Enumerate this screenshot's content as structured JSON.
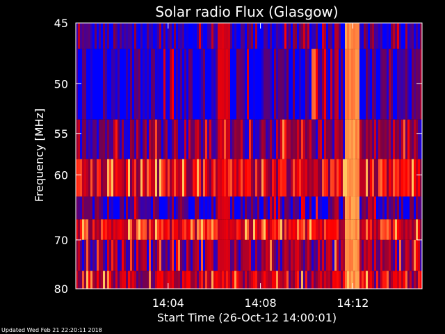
{
  "chart_data": {
    "type": "heatmap",
    "title": "Solar radio Flux (Glasgow)",
    "xlabel": "Start Time (26-Oct-12 14:00:01)",
    "ylabel_main": "Frequency ",
    "ylabel_unit": "[MHz]",
    "x_ticks": [
      "14:04",
      "14:08",
      "14:12"
    ],
    "x_tick_minutes": [
      4,
      8,
      12
    ],
    "xlim_minutes": [
      0,
      15
    ],
    "y_ticks": [
      "45",
      "50",
      "55",
      "60",
      "70",
      "80"
    ],
    "y_tick_values": [
      45,
      50,
      55,
      60,
      70,
      80
    ],
    "ylim": [
      45,
      80
    ],
    "y_scale": "reciprocal",
    "grid": false,
    "colormap": [
      "#0000ff",
      "#800040",
      "#ff0000",
      "#ffc860"
    ],
    "frequency_bands": [
      {
        "from": 45,
        "to": 47,
        "level": 0.08
      },
      {
        "from": 47,
        "to": 53.5,
        "level": 0.05
      },
      {
        "from": 53.5,
        "to": 58,
        "level": 0.3
      },
      {
        "from": 58,
        "to": 63,
        "level": 0.55
      },
      {
        "from": 63,
        "to": 66.5,
        "level": 0.12
      },
      {
        "from": 66.5,
        "to": 70,
        "level": 0.6
      },
      {
        "from": 70,
        "to": 76,
        "level": 0.3
      },
      {
        "from": 76,
        "to": 80,
        "level": 0.45
      }
    ],
    "bursts": [
      {
        "minute": 6.4,
        "width_minutes": 0.5,
        "level": 0.6
      },
      {
        "minute": 10.3,
        "width_minutes": 0.12,
        "level": 0.9,
        "from": 47,
        "to": 53.5
      },
      {
        "minute": 11.3,
        "width_minutes": 0.25,
        "level": 0.55
      },
      {
        "minute": 12.0,
        "width_minutes": 0.6,
        "level": 0.95
      }
    ]
  },
  "footer": {
    "updated": "Updated Wed Feb 21 22:20:11 2018"
  }
}
